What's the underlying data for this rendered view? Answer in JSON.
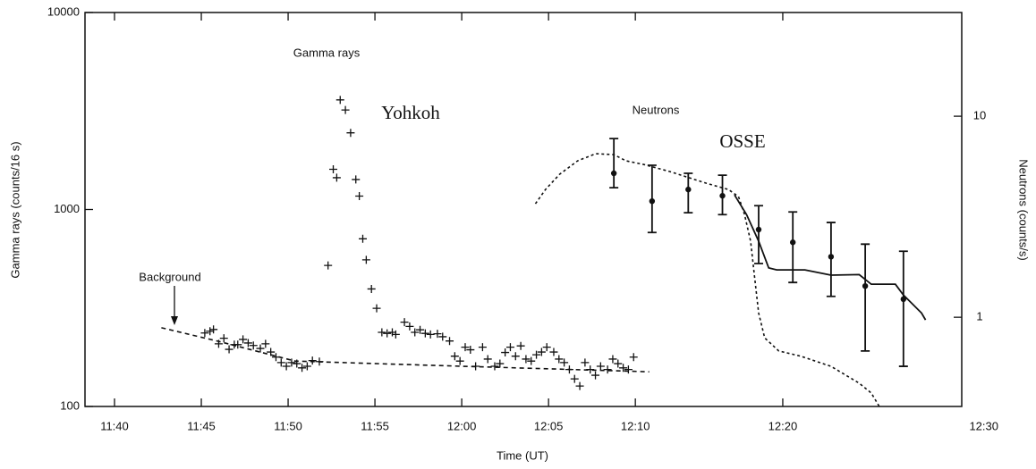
{
  "chart_data": {
    "type": "scatter",
    "xlabel": "Time (UT)",
    "ylabel": "Gamma rays (counts/16 s)",
    "y2label": "Neutrons (counts/s)",
    "yscale": "log",
    "y2scale": "log",
    "xlim": [
      698.3,
      748.8
    ],
    "xticks": [
      {
        "value": 700,
        "label": "11:40"
      },
      {
        "value": 705,
        "label": "11:45"
      },
      {
        "value": 710,
        "label": "11:50"
      },
      {
        "value": 715,
        "label": "11:55"
      },
      {
        "value": 720,
        "label": "12:00"
      },
      {
        "value": 725,
        "label": "12:05"
      },
      {
        "value": 730,
        "label": "12:10"
      }
    ],
    "x2lim": [
      705.3,
      748.9
    ],
    "x2ticks": [
      {
        "value": 740,
        "label": "12:20"
      },
      {
        "value": 750,
        "label": "12:30"
      }
    ],
    "ylim": [
      100,
      10000
    ],
    "yticks": [
      100,
      1000,
      10000
    ],
    "y2lim": [
      0.36,
      32.8
    ],
    "y2ticks": [
      1,
      10
    ],
    "annotations": [
      "Gamma rays",
      "Yohkoh",
      "Neutrons",
      "OSSE",
      "Background"
    ],
    "series": [
      {
        "type": "scatter",
        "marker": "plus",
        "color": "#111",
        "x": [
          705.2,
          705.5,
          705.7,
          706.0,
          706.3,
          706.6,
          706.9,
          707.1,
          707.4,
          707.7,
          708.0,
          708.4,
          708.7,
          709.0,
          709.3,
          709.6,
          709.9,
          710.2,
          710.5,
          710.8,
          711.1,
          711.4,
          711.8,
          712.3,
          712.6,
          712.8,
          713.0,
          713.3,
          713.6,
          713.9,
          714.1,
          714.3,
          714.5,
          714.8,
          715.1,
          715.4,
          715.7,
          716.0,
          716.2,
          716.7,
          717.0,
          717.3,
          717.6,
          717.9,
          718.2,
          718.6,
          718.9,
          719.3,
          719.6,
          719.9,
          720.2,
          720.5,
          720.8,
          721.2,
          721.5,
          721.9,
          722.2,
          722.5,
          722.8,
          723.1,
          723.4,
          723.7,
          724.0,
          724.3,
          724.6,
          724.9,
          725.3,
          725.6,
          725.9,
          726.2,
          726.5,
          726.8,
          727.1,
          727.4,
          727.7,
          728.0,
          728.4,
          728.7,
          729.0,
          729.3,
          729.6,
          729.9
        ],
        "values": [
          236,
          241,
          246,
          208,
          222,
          195,
          206,
          206,
          219,
          210,
          204,
          197,
          208,
          189,
          178,
          167,
          160,
          167,
          165,
          157,
          160,
          171,
          169,
          520,
          1600,
          1450,
          3600,
          3200,
          2450,
          1420,
          1170,
          710,
          555,
          395,
          315,
          238,
          235,
          238,
          232,
          268,
          255,
          238,
          245,
          235,
          232,
          234,
          226,
          215,
          180,
          170,
          200,
          194,
          160,
          200,
          174,
          160,
          165,
          188,
          200,
          180,
          203,
          174,
          170,
          183,
          189,
          200,
          189,
          174,
          167,
          154,
          138,
          127,
          167,
          154,
          144,
          160,
          154,
          174,
          165,
          157,
          154,
          178
        ]
      },
      {
        "type": "line",
        "style": "dashed",
        "color": "#111",
        "x": [
          702.7,
          706.0,
          710.4,
          720.0,
          730.8
        ],
        "values": [
          251,
          214,
          170,
          160,
          150
        ]
      },
      {
        "type": "errorbar",
        "axis": "y2",
        "xaxis": "x2",
        "color": "#111",
        "x": [
          731.6,
          733.5,
          735.3,
          737.0,
          738.8,
          740.5,
          742.4,
          744.1,
          746.0
        ],
        "values": [
          5.2,
          3.78,
          4.32,
          4.02,
          2.73,
          2.36,
          2.0,
          1.43,
          1.23
        ],
        "error_high": [
          7.74,
          5.7,
          5.2,
          5.09,
          3.59,
          3.34,
          2.96,
          2.31,
          2.13
        ],
        "error_low": [
          4.41,
          2.64,
          3.31,
          3.24,
          1.85,
          1.49,
          1.27,
          0.68,
          0.57
        ]
      },
      {
        "type": "line",
        "style": "dotted",
        "axis": "y2",
        "xaxis": "x2",
        "color": "#111",
        "x": [
          727.7,
          728.2,
          728.9,
          729.8,
          730.7,
          731.6,
          732.2,
          733.1,
          734.4,
          736.2,
          737.3,
          737.8,
          738.1,
          738.4,
          738.6,
          738.8,
          739.1,
          739.8,
          740.9,
          742.4,
          743.8,
          744.4,
          744.8
        ],
        "values": [
          3.67,
          4.32,
          5.14,
          6.0,
          6.51,
          6.44,
          6.0,
          5.75,
          5.3,
          4.64,
          4.32,
          3.98,
          3.24,
          2.39,
          1.58,
          1.05,
          0.79,
          0.68,
          0.64,
          0.57,
          0.47,
          0.42,
          0.36
        ]
      },
      {
        "type": "line",
        "style": "solid",
        "axis": "y2",
        "xaxis": "x2",
        "color": "#111",
        "x": [
          737.6,
          738.2,
          738.8,
          739.3,
          739.7,
          741.1,
          742.4,
          743.8,
          744.4,
          745.6,
          746.0,
          746.9,
          747.1
        ],
        "values": [
          4.06,
          3.24,
          2.39,
          1.76,
          1.72,
          1.72,
          1.62,
          1.63,
          1.46,
          1.46,
          1.29,
          1.05,
          0.97
        ]
      }
    ]
  }
}
